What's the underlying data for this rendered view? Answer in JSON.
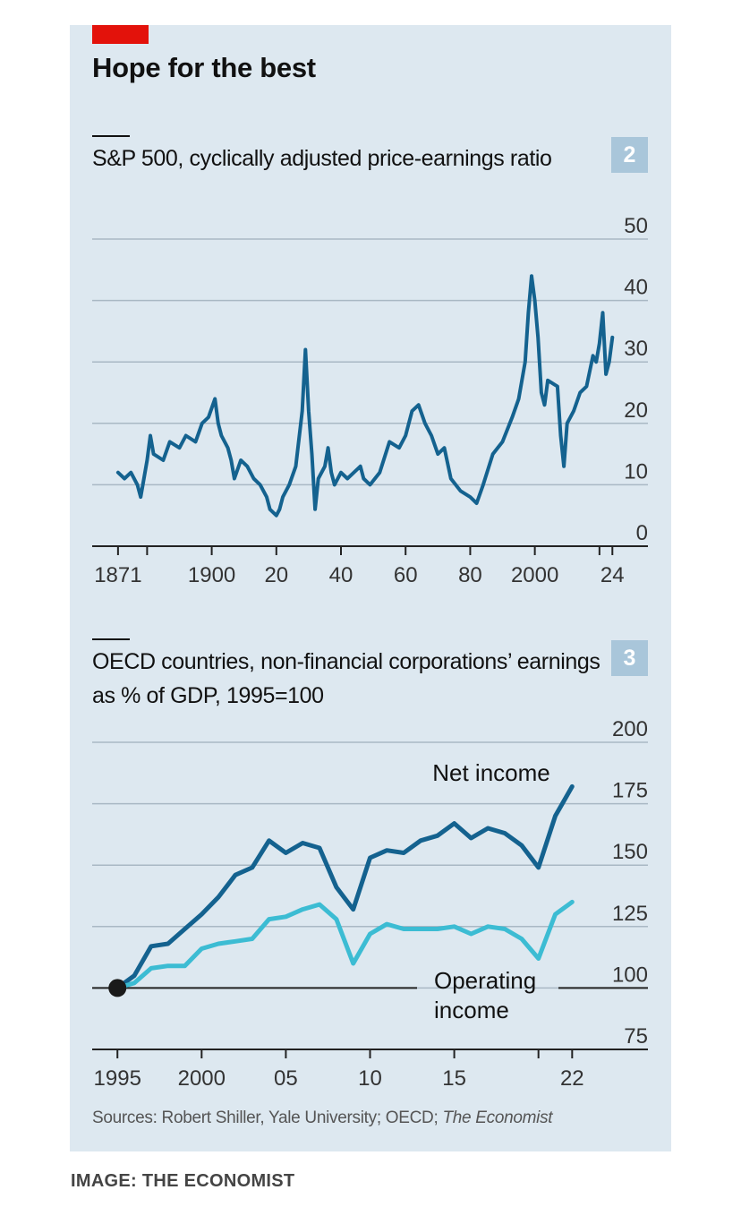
{
  "headline": "Hope for the best",
  "source": {
    "prefix": "Sources: Robert Shiller, Yale University; OECD; ",
    "italic": "The Economist"
  },
  "credit": "IMAGE: THE ECONOMIST",
  "colors": {
    "panel": "#dde8f0",
    "red_tag": "#e3120b",
    "series_dark": "#14628f",
    "series_light": "#3cbcd3",
    "badge": "#a9c6da"
  },
  "chart_data": [
    {
      "type": "line",
      "badge": "2",
      "title": "S&P 500, cyclically adjusted price-earnings ratio",
      "x_ticks": [
        {
          "year": 1871,
          "label": "1871"
        },
        {
          "year": 1880,
          "label": ""
        },
        {
          "year": 1900,
          "label": "1900"
        },
        {
          "year": 1920,
          "label": "20"
        },
        {
          "year": 1940,
          "label": "40"
        },
        {
          "year": 1960,
          "label": "60"
        },
        {
          "year": 1980,
          "label": "80"
        },
        {
          "year": 2000,
          "label": "2000"
        },
        {
          "year": 2020,
          "label": ""
        },
        {
          "year": 2024,
          "label": "24"
        }
      ],
      "xlim": [
        1863,
        2035
      ],
      "ylim": [
        0,
        50
      ],
      "y_ticks": [
        0,
        10,
        20,
        30,
        40,
        50
      ],
      "grid": true,
      "series": [
        {
          "x": [
            1871,
            1873,
            1875,
            1877,
            1878,
            1880,
            1881,
            1882,
            1885,
            1887,
            1890,
            1892,
            1895,
            1897,
            1899,
            1901,
            1902,
            1903,
            1905,
            1906,
            1907,
            1909,
            1911,
            1913,
            1915,
            1917,
            1918,
            1920,
            1921,
            1922,
            1924,
            1926,
            1928,
            1929,
            1930,
            1931,
            1932,
            1933,
            1935,
            1936,
            1937,
            1938,
            1940,
            1942,
            1944,
            1946,
            1947,
            1949,
            1952,
            1955,
            1958,
            1960,
            1962,
            1964,
            1966,
            1968,
            1970,
            1972,
            1974,
            1977,
            1980,
            1982,
            1984,
            1987,
            1990,
            1993,
            1995,
            1997,
            1998,
            1999,
            2000,
            2001,
            2002,
            2003,
            2004,
            2007,
            2008,
            2009,
            2010,
            2012,
            2014,
            2016,
            2018,
            2019,
            2020,
            2021,
            2022,
            2023,
            2024
          ],
          "y": [
            12,
            11,
            12,
            10,
            8,
            14,
            18,
            15,
            14,
            17,
            16,
            18,
            17,
            20,
            21,
            24,
            20,
            18,
            16,
            14,
            11,
            14,
            13,
            11,
            10,
            8,
            6,
            5,
            6,
            8,
            10,
            13,
            22,
            32,
            22,
            15,
            6,
            11,
            13,
            16,
            12,
            10,
            12,
            11,
            12,
            13,
            11,
            10,
            12,
            17,
            16,
            18,
            22,
            23,
            20,
            18,
            15,
            16,
            11,
            9,
            8,
            7,
            10,
            15,
            17,
            21,
            24,
            30,
            38,
            44,
            40,
            34,
            25,
            23,
            27,
            26,
            18,
            13,
            20,
            22,
            25,
            26,
            31,
            30,
            33,
            38,
            28,
            30,
            34
          ]
        }
      ]
    },
    {
      "type": "line",
      "badge": "3",
      "title": "OECD countries, non-financial corporations’ earnings as % of GDP, 1995=100",
      "x_ticks": [
        {
          "year": 1995,
          "label": "1995"
        },
        {
          "year": 2000,
          "label": "2000"
        },
        {
          "year": 2005,
          "label": "05"
        },
        {
          "year": 2010,
          "label": "10"
        },
        {
          "year": 2015,
          "label": "15"
        },
        {
          "year": 2020,
          "label": ""
        },
        {
          "year": 2022,
          "label": "22"
        }
      ],
      "xlim": [
        1993.5,
        2026.5
      ],
      "ylim": [
        75,
        200
      ],
      "y_ticks": [
        75,
        100,
        125,
        150,
        175,
        200
      ],
      "grid": true,
      "baseline": 100,
      "series": [
        {
          "name": "Net income",
          "x": [
            1995,
            1996,
            1997,
            1998,
            1999,
            2000,
            2001,
            2002,
            2003,
            2004,
            2005,
            2006,
            2007,
            2008,
            2009,
            2010,
            2011,
            2012,
            2013,
            2014,
            2015,
            2016,
            2017,
            2018,
            2019,
            2020,
            2021,
            2022
          ],
          "y": [
            100,
            105,
            117,
            118,
            124,
            130,
            137,
            146,
            149,
            160,
            155,
            159,
            157,
            141,
            132,
            153,
            156,
            155,
            160,
            162,
            167,
            161,
            165,
            163,
            158,
            149,
            170,
            182
          ]
        },
        {
          "name": "Operating income",
          "x": [
            1995,
            1996,
            1997,
            1998,
            1999,
            2000,
            2001,
            2002,
            2003,
            2004,
            2005,
            2006,
            2007,
            2008,
            2009,
            2010,
            2011,
            2012,
            2013,
            2014,
            2015,
            2016,
            2017,
            2018,
            2019,
            2020,
            2021,
            2022
          ],
          "y": [
            100,
            102,
            108,
            109,
            109,
            116,
            118,
            119,
            120,
            128,
            129,
            132,
            134,
            128,
            110,
            122,
            126,
            124,
            124,
            124,
            125,
            122,
            125,
            124,
            120,
            112,
            130,
            135
          ]
        }
      ]
    }
  ]
}
